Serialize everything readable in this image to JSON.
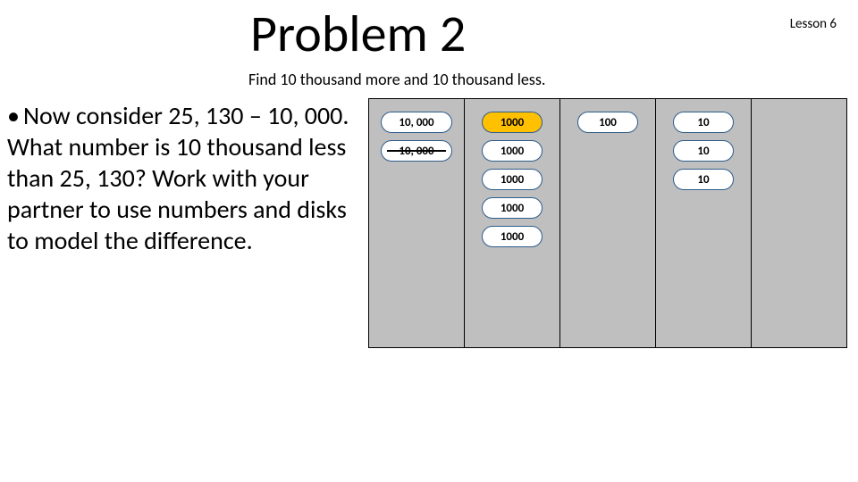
{
  "title": "Problem 2",
  "lesson": "Lesson 6",
  "subtitle": "Find 10 thousand more and 10 thousand less.",
  "bullet": "Now consider 25, 130 – 10, 000. What number is 10 thousand less than 25, 130? Work with your partner to use numbers and disks to model the difference.",
  "chart": {
    "background": "#bfbfbf",
    "border_color": "#000000",
    "disk_border": "#2e5c8a",
    "blue_fill": "#ffffff",
    "orange_fill": "#ffc000",
    "columns": [
      {
        "key": "ten_thousands",
        "disks": [
          {
            "label": "10, 000",
            "color": "blue",
            "struck": false
          },
          {
            "label": "10, 000",
            "color": "blue",
            "struck": true
          }
        ]
      },
      {
        "key": "thousands",
        "disks": [
          {
            "label": "1000",
            "color": "orange",
            "struck": false
          },
          {
            "label": "1000",
            "color": "blue",
            "struck": false
          },
          {
            "label": "1000",
            "color": "blue",
            "struck": false
          },
          {
            "label": "1000",
            "color": "blue",
            "struck": false
          },
          {
            "label": "1000",
            "color": "blue",
            "struck": false
          }
        ]
      },
      {
        "key": "hundreds",
        "disks": [
          {
            "label": "100",
            "color": "blue",
            "struck": false
          }
        ]
      },
      {
        "key": "tens",
        "disks": [
          {
            "label": "10",
            "color": "blue",
            "struck": false
          },
          {
            "label": "10",
            "color": "blue",
            "struck": false
          },
          {
            "label": "10",
            "color": "blue",
            "struck": false
          }
        ]
      },
      {
        "key": "ones",
        "disks": []
      }
    ]
  }
}
